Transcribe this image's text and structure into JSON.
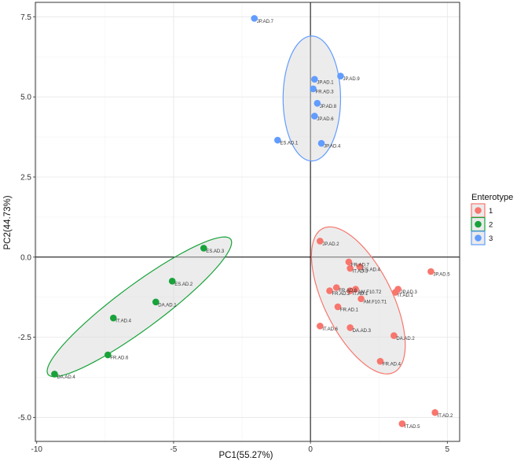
{
  "chart_data": {
    "type": "scatter",
    "title": "",
    "xlabel": "PC1(55.27%)",
    "ylabel": "PC2(44.73%)",
    "xlim": [
      -10.05,
      5.45
    ],
    "ylim": [
      -5.75,
      7.95
    ],
    "xticks": [
      -10,
      -5,
      0,
      5
    ],
    "xtick_labels": [
      "-10",
      "-5",
      "0",
      "5"
    ],
    "yticks": [
      -5,
      -2.5,
      0,
      2.5,
      5,
      7.5
    ],
    "ytick_labels": [
      "-5.0",
      "-2.5",
      "0.0",
      "2.5",
      "5.0",
      "7.5"
    ],
    "grid": true,
    "reference_lines": {
      "x": 0,
      "y": 0
    },
    "legend": {
      "title": "Enterotype",
      "position": "right",
      "entries": [
        {
          "label": "1",
          "color": "#f8766d"
        },
        {
          "label": "2",
          "color": "#18a33a"
        },
        {
          "label": "3",
          "color": "#619cff"
        }
      ]
    },
    "series": [
      {
        "name": "1",
        "color": "#f8766d",
        "ellipse": {
          "cx": 1.75,
          "cy": -1.35,
          "rx": 2.6,
          "ry": 1.2,
          "angle": -58
        },
        "points": [
          {
            "x": 0.35,
            "y": 0.5,
            "label": "JP.AD.2"
          },
          {
            "x": 1.4,
            "y": -0.15,
            "label": "FR.AD.7"
          },
          {
            "x": 1.45,
            "y": -0.35,
            "label": "IT.AD.3"
          },
          {
            "x": 1.8,
            "y": -0.3,
            "label": "ES.AD.4"
          },
          {
            "x": 0.7,
            "y": -1.05,
            "label": "FR.AD.2"
          },
          {
            "x": 0.95,
            "y": -0.95,
            "label": "FR.AD.6"
          },
          {
            "x": 1.65,
            "y": -1.0,
            "label": "AM.F10.T2"
          },
          {
            "x": 1.45,
            "y": -1.05,
            "label": "IT.AD.1"
          },
          {
            "x": 1.85,
            "y": -1.3,
            "label": "AM.F10.T1"
          },
          {
            "x": 1.0,
            "y": -1.55,
            "label": "FR.AD.1"
          },
          {
            "x": 3.2,
            "y": -1.0,
            "label": "JP.AD.3"
          },
          {
            "x": 3.1,
            "y": -1.1,
            "label": "IT.AD.1"
          },
          {
            "x": 0.35,
            "y": -2.15,
            "label": "IT.AD.6"
          },
          {
            "x": 1.45,
            "y": -2.2,
            "label": "DA.AD.3"
          },
          {
            "x": 3.05,
            "y": -2.45,
            "label": "DA.AD.2"
          },
          {
            "x": 2.55,
            "y": -3.25,
            "label": "FR.AD.4"
          },
          {
            "x": 4.4,
            "y": -0.45,
            "label": "JP.AD.5"
          },
          {
            "x": 4.55,
            "y": -4.85,
            "label": "IT.AD.2"
          },
          {
            "x": 3.35,
            "y": -5.2,
            "label": "IT.AD.5"
          }
        ]
      },
      {
        "name": "2",
        "color": "#18a33a",
        "ellipse": {
          "cx": -6.25,
          "cy": -1.55,
          "rx": 3.95,
          "ry": 0.72,
          "angle": 32
        },
        "points": [
          {
            "x": -3.9,
            "y": 0.28,
            "label": "ES.AD.3"
          },
          {
            "x": -5.05,
            "y": -0.75,
            "label": "ES.AD.2"
          },
          {
            "x": -5.65,
            "y": -1.4,
            "label": "DA.AD.1"
          },
          {
            "x": -7.2,
            "y": -1.9,
            "label": "IT.AD.4"
          },
          {
            "x": -7.4,
            "y": -3.05,
            "label": "FR.AD.6"
          },
          {
            "x": -9.35,
            "y": -3.65,
            "label": "DA.AD.4"
          }
        ]
      },
      {
        "name": "3",
        "color": "#619cff",
        "ellipse": {
          "cx": 0.05,
          "cy": 4.95,
          "rx": 1.05,
          "ry": 1.95,
          "angle": 0
        },
        "points": [
          {
            "x": -2.05,
            "y": 7.45,
            "label": "JP.AD.7"
          },
          {
            "x": 1.1,
            "y": 5.65,
            "label": "JP.AD.9"
          },
          {
            "x": 0.15,
            "y": 5.55,
            "label": "JP.AD.1"
          },
          {
            "x": 0.1,
            "y": 5.25,
            "label": "FR.AD.3"
          },
          {
            "x": 0.25,
            "y": 4.8,
            "label": "JP.AD.8"
          },
          {
            "x": 0.15,
            "y": 4.4,
            "label": "JP.AD.6"
          },
          {
            "x": -1.2,
            "y": 3.65,
            "label": "ES.AD.1"
          },
          {
            "x": 0.4,
            "y": 3.55,
            "label": "JP.AD.4"
          }
        ]
      }
    ]
  }
}
